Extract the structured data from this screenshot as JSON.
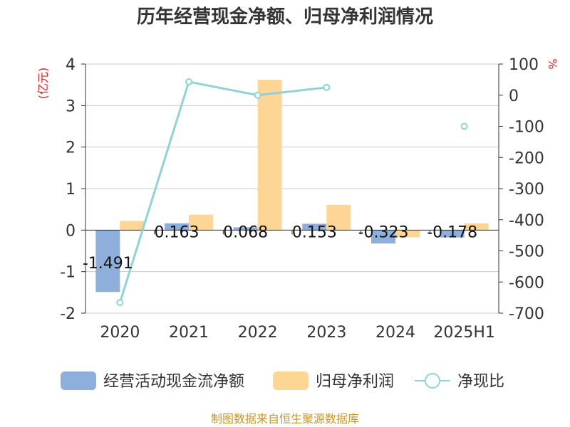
{
  "chart_data": {
    "type": "bar",
    "title": "历年经营现金净额、归母净利润情况",
    "categories": [
      "2020",
      "2021",
      "2022",
      "2023",
      "2024",
      "2025H1"
    ],
    "series": [
      {
        "name": "经营活动现金流净额",
        "kind": "bar",
        "axis": "left",
        "color": "#8eaedb",
        "values": [
          -1.491,
          0.163,
          0.068,
          0.153,
          -0.323,
          -0.178
        ],
        "labels": [
          "-1.491",
          "0.163",
          "0.068",
          "0.153",
          "-0.323",
          "-0.178"
        ]
      },
      {
        "name": "归母净利润",
        "kind": "bar",
        "axis": "left",
        "color": "#fdd695",
        "values": [
          0.22,
          0.37,
          3.62,
          0.61,
          -0.17,
          0.16
        ]
      },
      {
        "name": "净现比",
        "kind": "line",
        "axis": "right",
        "color": "#8ed3d8",
        "values": [
          -666,
          43,
          0,
          25,
          null,
          -100
        ]
      }
    ],
    "y_left": {
      "label": "(亿元)",
      "min": -2,
      "max": 4,
      "ticks": [
        "-2",
        "-1",
        "0",
        "1",
        "2",
        "3",
        "4"
      ]
    },
    "y_right": {
      "label": "%",
      "min": -700,
      "max": 100,
      "ticks": [
        "-700",
        "-600",
        "-500",
        "-400",
        "-300",
        "-200",
        "-100",
        "0",
        "100"
      ]
    },
    "grid": true,
    "legend_position": "bottom"
  },
  "footer": {
    "source": "制图数据来自恒生聚源数据库"
  }
}
